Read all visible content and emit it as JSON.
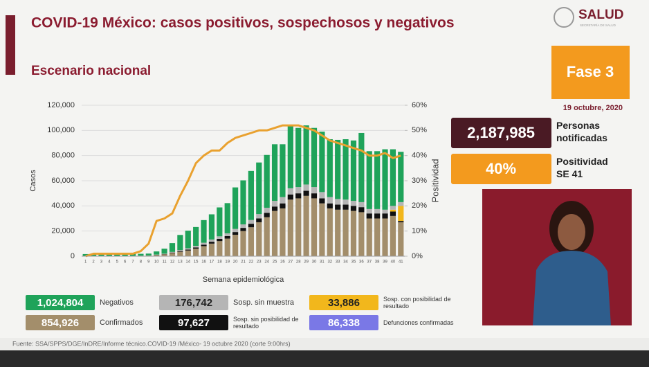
{
  "header": {
    "title": "COVID-19 México: casos positivos, sospechosos y negativos",
    "subtitle": "Escenario nacional",
    "logo": "SALUD",
    "logo_sub": "SECRETARÍA DE SALUD"
  },
  "phase": "Fase 3",
  "date": "19 octubre, 2020",
  "stats": [
    {
      "value": "2,187,985",
      "label": "Personas notificadas",
      "color": "#4a1a24"
    },
    {
      "value": "40%",
      "label": "Positividad SE 41",
      "color": "#f39a1e"
    }
  ],
  "deaths": {
    "total": "86,338",
    "label": "Defunciones confirmadas",
    "color": "#7a78e6"
  },
  "footer": "Fuente: SSA/SPPS/DGE/InDRE/Informe técnico.COVID-19 /México- 19 octubre 2020 (corte 9:00hrs)",
  "chart_data": {
    "type": "bar",
    "xlabel": "Semana epidemiológica",
    "ylabel": "Casos",
    "y2label": "Positividad",
    "categories": [
      "1",
      "2",
      "3",
      "4",
      "5",
      "6",
      "7",
      "8",
      "9",
      "10",
      "11",
      "12",
      "13",
      "14",
      "15",
      "16",
      "17",
      "18",
      "19",
      "20",
      "21",
      "22",
      "23",
      "24",
      "25",
      "26",
      "27",
      "28",
      "29",
      "30",
      "31",
      "32",
      "33",
      "34",
      "35",
      "36",
      "37",
      "38",
      "39",
      "40",
      "41"
    ],
    "ylim": [
      0,
      120000
    ],
    "yticks": [
      0,
      {
        "value": 20000,
        "label": "20,000"
      },
      {
        "value": 40000,
        "label": "40,000"
      },
      {
        "value": 60000,
        "label": "60,000"
      },
      {
        "value": 80000,
        "label": "80,000"
      },
      {
        "value": 100000,
        "label": "100,000"
      },
      {
        "value": 120000,
        "label": "120,000"
      }
    ],
    "y2lim": [
      0,
      60
    ],
    "y2ticks": [
      {
        "value": 0,
        "label": "0%"
      },
      {
        "value": 10,
        "label": "10%"
      },
      {
        "value": 20,
        "label": "20%"
      },
      {
        "value": 30,
        "label": "30%"
      },
      {
        "value": 40,
        "label": "40%"
      },
      {
        "value": 50,
        "label": "50%"
      },
      {
        "value": 60,
        "label": "60%"
      }
    ],
    "series": [
      {
        "name": "Confirmados",
        "total": "854,926",
        "color": "#a38e6b",
        "values": [
          100,
          100,
          100,
          100,
          100,
          100,
          200,
          300,
          500,
          1000,
          1500,
          2500,
          3500,
          4500,
          6000,
          8000,
          10000,
          12000,
          14000,
          17000,
          20000,
          23000,
          27000,
          31000,
          36000,
          38000,
          45000,
          46000,
          48000,
          46000,
          42000,
          38000,
          37000,
          37000,
          36000,
          35000,
          30000,
          30000,
          30000,
          32000,
          27000
        ]
      },
      {
        "name": "Sosp. sin posibilidad de resultado",
        "total": "97,627",
        "color": "#111111",
        "values": [
          0,
          0,
          0,
          0,
          0,
          0,
          0,
          0,
          0,
          100,
          200,
          400,
          600,
          800,
          1000,
          1200,
          1500,
          1800,
          2000,
          2200,
          2500,
          2800,
          3000,
          3500,
          3500,
          4000,
          4000,
          4000,
          4000,
          4000,
          4000,
          4000,
          4000,
          4000,
          4000,
          4000,
          4000,
          4000,
          4000,
          3500,
          1000
        ]
      },
      {
        "name": "Sosp. con posibilidad de resultado",
        "total": "33,886",
        "color": "#f2b71c",
        "values": [
          0,
          0,
          0,
          0,
          0,
          0,
          0,
          0,
          0,
          0,
          0,
          0,
          0,
          0,
          0,
          0,
          0,
          0,
          0,
          0,
          0,
          0,
          0,
          0,
          0,
          0,
          0,
          0,
          0,
          0,
          0,
          0,
          0,
          0,
          0,
          0,
          0,
          0,
          0,
          1500,
          12000
        ]
      },
      {
        "name": "Sosp. sin muestra",
        "total": "176,742",
        "color": "#b5b5b5",
        "values": [
          100,
          100,
          100,
          100,
          100,
          100,
          100,
          100,
          100,
          200,
          300,
          500,
          800,
          1000,
          1200,
          1500,
          1800,
          2000,
          2200,
          2500,
          2800,
          3000,
          3500,
          4000,
          4500,
          5000,
          5000,
          5000,
          5000,
          5000,
          5000,
          5000,
          4500,
          4000,
          4000,
          4000,
          3500,
          3500,
          3000,
          3000,
          3000
        ]
      },
      {
        "name": "Negativos",
        "total": "1,024,804",
        "color": "#1fa35a",
        "values": [
          1500,
          1800,
          1800,
          1800,
          1800,
          1800,
          1800,
          1500,
          1500,
          2500,
          4000,
          7000,
          12000,
          14000,
          15000,
          18000,
          20000,
          23000,
          24000,
          33000,
          35000,
          39000,
          41000,
          42000,
          45000,
          42000,
          50000,
          47000,
          47000,
          47000,
          48000,
          46000,
          47000,
          48000,
          48000,
          55000,
          46000,
          46000,
          48000,
          45000,
          40000
        ]
      }
    ],
    "positivity": {
      "axis": "y2",
      "color": "#e9a12f",
      "values": [
        0,
        1,
        1,
        1,
        1,
        1,
        1,
        2,
        5,
        14,
        15,
        17,
        24,
        30,
        37,
        40,
        42,
        42,
        45,
        47,
        48,
        49,
        50,
        50,
        51,
        52,
        52,
        52,
        51,
        50,
        48,
        46,
        45,
        44,
        43,
        42,
        40,
        40,
        41,
        39,
        40
      ]
    }
  }
}
